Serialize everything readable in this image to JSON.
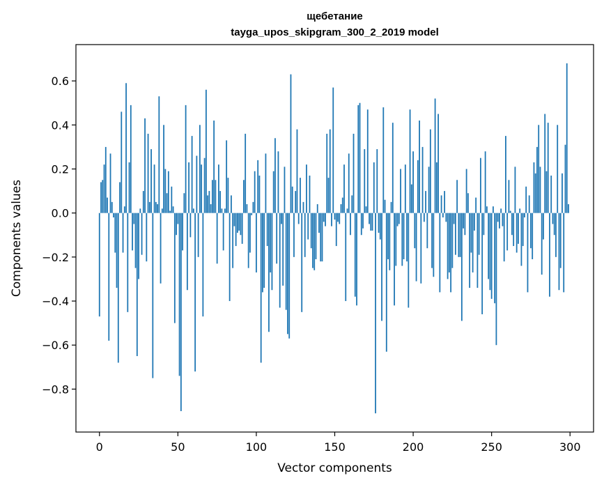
{
  "chart_data": {
    "type": "bar",
    "title": "щебетание",
    "subtitle": "tayga_upos_skipgram_300_2_2019 model",
    "xlabel": "Vector components",
    "ylabel": "Components values",
    "xlim": [
      -15,
      315
    ],
    "ylim": [
      -0.995,
      0.765
    ],
    "xticks": [
      0,
      50,
      100,
      150,
      200,
      250,
      300
    ],
    "xtick_labels": [
      "0",
      "50",
      "100",
      "150",
      "200",
      "250",
      "300"
    ],
    "yticks": [
      -0.8,
      -0.6,
      -0.4,
      -0.2,
      0.0,
      0.2,
      0.4,
      0.6
    ],
    "ytick_labels": [
      "−0.8",
      "−0.6",
      "−0.4",
      "−0.2",
      "0.0",
      "0.2",
      "0.4",
      "0.6"
    ],
    "grid": false,
    "bar_color": "#1f77b4",
    "x": "0..299 (component index)",
    "values": [
      -0.47,
      0.14,
      0.15,
      0.22,
      0.3,
      0.07,
      -0.58,
      0.27,
      0.05,
      -0.02,
      -0.18,
      -0.34,
      -0.68,
      0.14,
      0.46,
      -0.18,
      0.03,
      0.59,
      -0.45,
      0.23,
      0.49,
      -0.17,
      -0.05,
      -0.25,
      -0.65,
      -0.3,
      0.02,
      -0.19,
      0.1,
      0.43,
      -0.22,
      0.36,
      0.05,
      0.29,
      -0.75,
      0.22,
      0.05,
      0.04,
      0.53,
      -0.32,
      0.02,
      0.4,
      0.2,
      0.09,
      0.19,
      0.01,
      0.12,
      0.03,
      -0.5,
      -0.1,
      -0.05,
      -0.74,
      -0.9,
      -0.17,
      0.09,
      0.49,
      -0.35,
      0.23,
      -0.11,
      0.35,
      0.02,
      -0.72,
      0.26,
      -0.2,
      0.4,
      0.22,
      -0.47,
      0.25,
      0.56,
      0.08,
      0.1,
      0.04,
      0.15,
      0.42,
      0.15,
      -0.23,
      0.22,
      0.1,
      0.02,
      -0.17,
      0.02,
      0.33,
      0.16,
      -0.4,
      0.08,
      -0.25,
      -0.06,
      -0.15,
      -0.09,
      -0.08,
      -0.1,
      -0.14,
      0.15,
      0.36,
      0.04,
      -0.25,
      -0.18,
      -0.01,
      0.05,
      0.19,
      -0.27,
      0.24,
      0.17,
      -0.68,
      -0.36,
      -0.34,
      0.27,
      -0.15,
      -0.54,
      -0.27,
      -0.35,
      0.19,
      0.34,
      -0.23,
      0.28,
      -0.43,
      -0.05,
      -0.33,
      0.21,
      -0.44,
      -0.55,
      -0.57,
      0.63,
      0.12,
      -0.2,
      0.1,
      0.38,
      -0.05,
      0.16,
      -0.45,
      0.05,
      -0.2,
      0.22,
      -0.12,
      0.17,
      -0.16,
      -0.25,
      -0.26,
      -0.21,
      0.04,
      -0.09,
      -0.22,
      -0.22,
      -0.04,
      -0.06,
      0.36,
      0.16,
      0.38,
      -0.06,
      0.57,
      -0.03,
      -0.15,
      -0.04,
      -0.05,
      0.04,
      0.07,
      0.22,
      -0.4,
      0.02,
      0.27,
      -0.1,
      0.08,
      0.36,
      -0.38,
      -0.42,
      0.49,
      0.5,
      -0.1,
      -0.07,
      0.29,
      0.03,
      0.47,
      -0.05,
      -0.08,
      -0.08,
      0.23,
      -0.91,
      0.29,
      -0.09,
      -0.12,
      -0.49,
      0.48,
      0.06,
      -0.63,
      -0.21,
      -0.26,
      0.05,
      0.41,
      -0.42,
      -0.24,
      -0.06,
      -0.05,
      0.2,
      -0.24,
      -0.21,
      0.22,
      -0.22,
      -0.43,
      0.47,
      0.13,
      0.28,
      -0.16,
      -0.31,
      0.24,
      0.42,
      -0.32,
      0.3,
      -0.04,
      0.1,
      -0.16,
      0.21,
      0.38,
      -0.25,
      -0.29,
      0.52,
      0.23,
      0.45,
      -0.36,
      0.08,
      -0.02,
      0.1,
      -0.04,
      -0.3,
      -0.27,
      -0.36,
      -0.25,
      -0.05,
      -0.19,
      0.15,
      -0.2,
      -0.2,
      -0.49,
      -0.07,
      -0.1,
      0.2,
      0.09,
      -0.34,
      -0.18,
      -0.27,
      -0.08,
      0.07,
      -0.34,
      -0.19,
      0.25,
      -0.46,
      -0.1,
      0.28,
      0.03,
      -0.3,
      -0.35,
      -0.39,
      0.03,
      -0.41,
      -0.6,
      -0.04,
      -0.07,
      0.02,
      -0.06,
      -0.22,
      0.35,
      -0.17,
      0.15,
      0.01,
      -0.1,
      -0.15,
      0.21,
      -0.18,
      -0.14,
      0.02,
      -0.24,
      -0.15,
      -0.02,
      0.12,
      -0.36,
      0.08,
      -0.16,
      -0.21,
      0.23,
      0.18,
      0.3,
      0.4,
      0.21,
      -0.28,
      -0.12,
      0.45,
      0.19,
      0.41,
      -0.38,
      0.17,
      -0.05,
      -0.1,
      -0.2,
      0.4,
      -0.35,
      -0.25,
      0.18,
      -0.36,
      0.31,
      0.68,
      0.04
    ]
  }
}
